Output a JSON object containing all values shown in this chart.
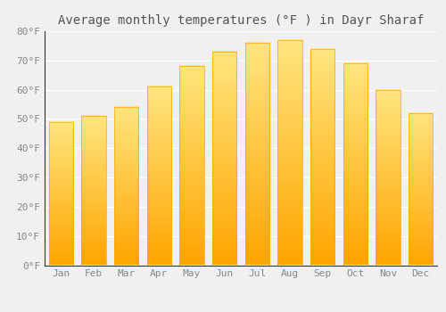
{
  "title": "Average monthly temperatures (°F ) in Dayr Sharaf",
  "months": [
    "Jan",
    "Feb",
    "Mar",
    "Apr",
    "May",
    "Jun",
    "Jul",
    "Aug",
    "Sep",
    "Oct",
    "Nov",
    "Dec"
  ],
  "values": [
    49,
    51,
    54,
    61,
    68,
    73,
    76,
    77,
    74,
    69,
    60,
    52
  ],
  "bar_color_bottom": "#FFA500",
  "bar_color_top": "#FFE680",
  "ylim": [
    0,
    80
  ],
  "yticks": [
    0,
    10,
    20,
    30,
    40,
    50,
    60,
    70,
    80
  ],
  "ytick_labels": [
    "0°F",
    "10°F",
    "20°F",
    "30°F",
    "40°F",
    "50°F",
    "60°F",
    "70°F",
    "80°F"
  ],
  "background_color": "#F0F0F0",
  "grid_color": "#FFFFFF",
  "title_fontsize": 10,
  "tick_fontsize": 8,
  "bar_width": 0.75
}
